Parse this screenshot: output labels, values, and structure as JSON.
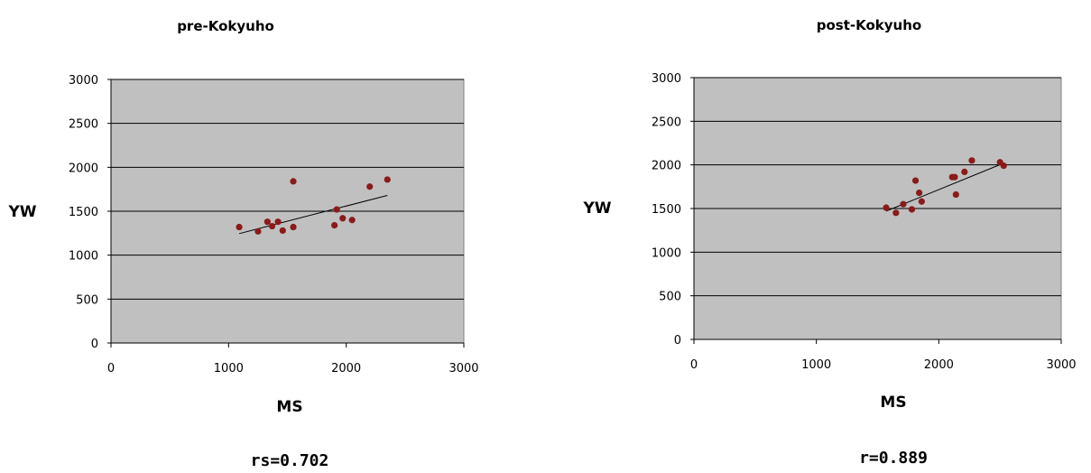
{
  "chart_data": [
    {
      "type": "scatter",
      "title": "pre-Kokyuho",
      "xlabel": "MS",
      "ylabel": "YW",
      "xlim": [
        0,
        3000
      ],
      "ylim": [
        0,
        3000
      ],
      "xticks": [
        "0",
        "1000",
        "2000",
        "3000"
      ],
      "yticks": [
        "0",
        "500",
        "1000",
        "1500",
        "2000",
        "2500",
        "3000"
      ],
      "grid": "horizontal",
      "plot_background": "#c0c0c0",
      "marker_color": "#8b1a1a",
      "annotation": "rs=0.702",
      "points": [
        [
          1090,
          1320
        ],
        [
          1250,
          1270
        ],
        [
          1330,
          1380
        ],
        [
          1370,
          1330
        ],
        [
          1420,
          1380
        ],
        [
          1460,
          1280
        ],
        [
          1550,
          1320
        ],
        [
          1550,
          1840
        ],
        [
          1900,
          1340
        ],
        [
          1920,
          1520
        ],
        [
          1970,
          1420
        ],
        [
          2050,
          1400
        ],
        [
          2200,
          1780
        ],
        [
          2350,
          1860
        ]
      ],
      "trendline": [
        [
          1090,
          1245
        ],
        [
          2350,
          1680
        ]
      ]
    },
    {
      "type": "scatter",
      "title": "post-Kokyuho",
      "xlabel": "MS",
      "ylabel": "YW",
      "xlim": [
        0,
        3000
      ],
      "ylim": [
        0,
        3000
      ],
      "xticks": [
        "0",
        "1000",
        "2000",
        "3000"
      ],
      "yticks": [
        "0",
        "500",
        "1000",
        "1500",
        "2000",
        "2500",
        "3000"
      ],
      "grid": "horizontal",
      "plot_background": "#c0c0c0",
      "marker_color": "#8b1a1a",
      "annotation": "r=0.889",
      "points": [
        [
          1570,
          1510
        ],
        [
          1650,
          1450
        ],
        [
          1710,
          1550
        ],
        [
          1780,
          1490
        ],
        [
          1810,
          1820
        ],
        [
          1840,
          1680
        ],
        [
          1860,
          1580
        ],
        [
          2110,
          1860
        ],
        [
          2130,
          1860
        ],
        [
          2140,
          1660
        ],
        [
          2210,
          1920
        ],
        [
          2270,
          2050
        ],
        [
          2500,
          2030
        ],
        [
          2530,
          1990
        ]
      ],
      "trendline": [
        [
          1570,
          1470
        ],
        [
          2530,
          2020
        ]
      ]
    }
  ]
}
